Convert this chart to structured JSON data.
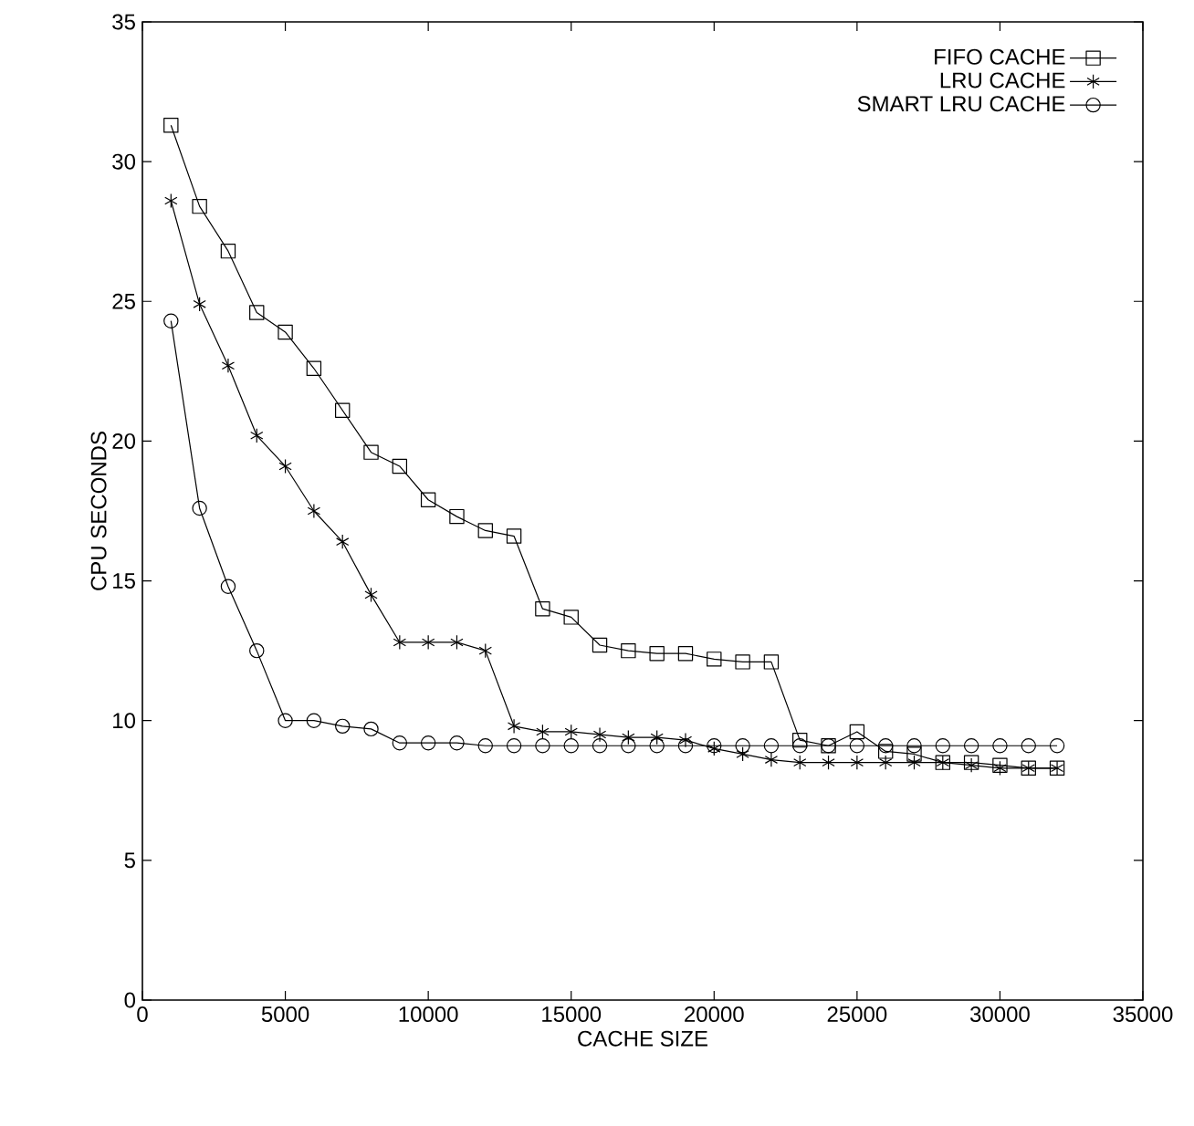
{
  "chart_data": {
    "type": "line",
    "xlabel": "CACHE SIZE",
    "ylabel": "CPU SECONDS",
    "x": [
      1000,
      2000,
      3000,
      4000,
      5000,
      6000,
      7000,
      8000,
      9000,
      10000,
      11000,
      12000,
      13000,
      14000,
      15000,
      16000,
      17000,
      18000,
      19000,
      20000,
      21000,
      22000,
      23000,
      24000,
      25000,
      26000,
      27000,
      28000,
      29000,
      30000,
      31000,
      32000
    ],
    "series": [
      {
        "name": "FIFO CACHE",
        "color": "#000000",
        "marker": "square",
        "values": [
          31.3,
          28.4,
          26.8,
          24.6,
          23.9,
          22.6,
          21.1,
          19.6,
          19.1,
          17.9,
          17.3,
          16.8,
          16.6,
          14.0,
          13.7,
          12.7,
          12.5,
          12.4,
          12.4,
          12.2,
          12.1,
          12.1,
          9.3,
          9.1,
          9.6,
          8.9,
          8.8,
          8.5,
          8.5,
          8.4,
          8.3,
          8.3
        ]
      },
      {
        "name": "LRU CACHE",
        "color": "#000000",
        "marker": "cross",
        "values": [
          28.6,
          24.9,
          22.7,
          20.2,
          19.1,
          17.5,
          16.4,
          14.5,
          12.8,
          12.8,
          12.8,
          12.5,
          9.8,
          9.6,
          9.6,
          9.5,
          9.4,
          9.4,
          9.3,
          9.0,
          8.8,
          8.6,
          8.5,
          8.5,
          8.5,
          8.5,
          8.5,
          8.5,
          8.4,
          8.3,
          8.3,
          8.3
        ]
      },
      {
        "name": "SMART LRU CACHE",
        "color": "#000000",
        "marker": "circle",
        "values": [
          24.3,
          17.6,
          14.8,
          12.5,
          10.0,
          10.0,
          9.8,
          9.7,
          9.2,
          9.2,
          9.2,
          9.1,
          9.1,
          9.1,
          9.1,
          9.1,
          9.1,
          9.1,
          9.1,
          9.1,
          9.1,
          9.1,
          9.1,
          9.1,
          9.1,
          9.1,
          9.1,
          9.1,
          9.1,
          9.1,
          9.1,
          9.1
        ]
      }
    ],
    "xlim": [
      0,
      35000
    ],
    "ylim": [
      0,
      35
    ],
    "xticks": [
      0,
      5000,
      10000,
      15000,
      20000,
      25000,
      30000,
      35000
    ],
    "yticks": [
      0,
      5,
      10,
      15,
      20,
      25,
      30,
      35
    ],
    "grid": false,
    "legend": "top right",
    "line_style": "solid"
  }
}
